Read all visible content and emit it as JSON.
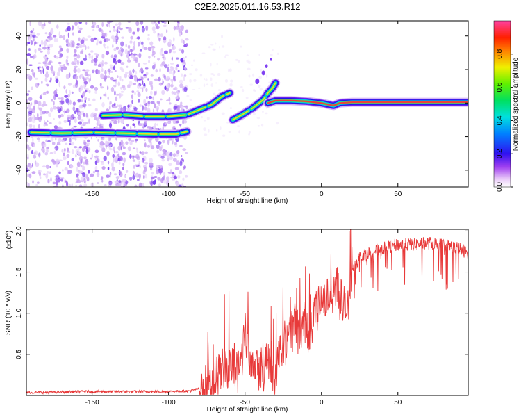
{
  "title": "C2E2.2025.011.16.53.R12",
  "colors": {
    "snr_line": "#e83a3a",
    "frame": "#000000",
    "ridge_core": "#e8443a"
  },
  "chart_data": [
    {
      "type": "heatmap",
      "title": "C2E2.2025.011.16.53.R12",
      "xlabel": "Height of straight line (km)",
      "ylabel": "Frequency (Hz)",
      "xlim": [
        -193,
        96
      ],
      "ylim": [
        -50,
        49
      ],
      "xticks": [
        -150,
        -100,
        -50,
        0,
        50
      ],
      "xtick_labels": [
        "-150",
        "-100",
        "-50",
        "0",
        "50"
      ],
      "yticks": [
        -40,
        -20,
        0,
        20,
        40
      ],
      "ytick_labels": [
        "-40",
        "-20",
        "0",
        "20",
        "40"
      ],
      "colorbar": {
        "label": "Normalized spectral amplitude",
        "range": [
          0,
          1
        ],
        "ticks": [
          0,
          0.2,
          0.4,
          0.6,
          0.8
        ],
        "tick_labels": [
          "0.0",
          "0.2",
          "0.4",
          "0.6",
          "0.8"
        ]
      },
      "noise_region": {
        "x_range": [
          -193,
          -88
        ],
        "y_range": [
          -50,
          49
        ]
      },
      "ridges": [
        {
          "points": [
            [
              -190,
              -17.5
            ],
            [
              -170,
              -18
            ],
            [
              -150,
              -17.5
            ],
            [
              -130,
              -18
            ],
            [
              -110,
              -18.5
            ],
            [
              -95,
              -18.5
            ],
            [
              -88,
              -17
            ]
          ]
        },
        {
          "points": [
            [
              -143,
              -7.5
            ],
            [
              -130,
              -7
            ],
            [
              -115,
              -8
            ],
            [
              -100,
              -8
            ],
            [
              -88,
              -7
            ],
            [
              -80,
              -4
            ],
            [
              -72,
              -1
            ],
            [
              -65,
              4
            ],
            [
              -60,
              6
            ]
          ]
        },
        {
          "points": [
            [
              -58,
              -10
            ],
            [
              -52,
              -7
            ],
            [
              -45,
              -3
            ],
            [
              -38,
              2
            ],
            [
              -35,
              6
            ],
            [
              -32,
              9
            ],
            [
              -30,
              12
            ]
          ]
        },
        {
          "points": [
            [
              -35,
              0
            ],
            [
              -30,
              1.5
            ],
            [
              -20,
              1.5
            ],
            [
              -10,
              1
            ],
            [
              0,
              0
            ],
            [
              5,
              -1
            ],
            [
              8,
              -1.5
            ],
            [
              12,
              0
            ],
            [
              20,
              0.5
            ],
            [
              50,
              0.5
            ],
            [
              80,
              0.5
            ],
            [
              96,
              0.5
            ]
          ]
        }
      ]
    },
    {
      "type": "line",
      "xlabel": "Height of straight line (km)",
      "ylabel": "SNR (10 * v/v)",
      "yscale_label_base": "(x10",
      "yscale_label_exp": "4",
      "yscale_label_close": ")",
      "xlim": [
        -193,
        96
      ],
      "ylim": [
        0,
        2.02
      ],
      "xticks": [
        -150,
        -100,
        -50,
        0,
        50
      ],
      "xtick_labels": [
        "-150",
        "-100",
        "-50",
        "0",
        "50"
      ],
      "yticks": [
        0.5,
        1.0,
        1.5,
        2.0
      ],
      "ytick_labels": [
        "0.5",
        "1.0",
        "1.5",
        "2.0"
      ],
      "series": [
        {
          "x": [
            -193,
            -180,
            -160,
            -140,
            -120,
            -100,
            -85,
            -78,
            -72,
            -68,
            -65,
            -62,
            -58,
            -55,
            -52,
            -50,
            -48,
            -45,
            -42,
            -40,
            -38,
            -35,
            -32,
            -30,
            -28,
            -25,
            -22,
            -20,
            -18,
            -15,
            -12,
            -10,
            -8,
            -5,
            -2,
            0,
            2,
            5,
            8,
            10,
            12,
            15,
            18,
            20,
            22,
            25,
            30,
            40,
            50,
            60,
            70,
            80,
            85,
            90,
            96
          ],
          "y": [
            0.04,
            0.04,
            0.05,
            0.05,
            0.05,
            0.05,
            0.06,
            0.1,
            0.2,
            0.3,
            0.35,
            0.4,
            0.45,
            0.35,
            0.55,
            0.9,
            0.6,
            0.5,
            0.45,
            0.45,
            0.4,
            0.45,
            0.35,
            0.3,
            0.65,
            0.6,
            0.85,
            0.8,
            0.95,
            0.85,
            0.9,
            0.95,
            0.85,
            1.05,
            1.1,
            1.3,
            1.15,
            1.35,
            1.25,
            1.45,
            1.3,
            1.1,
            1.1,
            1.6,
            1.6,
            1.7,
            1.75,
            1.8,
            1.85,
            1.85,
            1.87,
            1.85,
            1.83,
            1.8,
            1.75
          ]
        }
      ]
    }
  ]
}
